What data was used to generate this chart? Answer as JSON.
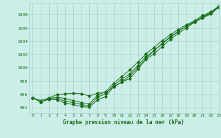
{
  "title": "Graphe pression niveau de la mer (hPa)",
  "bg_color": "#cceee8",
  "grid_color": "#aacccc",
  "line_color": "#1a6e1a",
  "xlim": [
    -0.5,
    23
  ],
  "ylim": [
    993.2,
    1009.8
  ],
  "yticks": [
    994,
    996,
    998,
    1000,
    1002,
    1004,
    1006,
    1008
  ],
  "xticks": [
    0,
    1,
    2,
    3,
    4,
    5,
    6,
    7,
    8,
    9,
    10,
    11,
    12,
    13,
    14,
    15,
    16,
    17,
    18,
    19,
    20,
    21,
    22,
    23
  ],
  "hours": [
    0,
    1,
    2,
    3,
    4,
    5,
    6,
    7,
    8,
    9,
    10,
    11,
    12,
    13,
    14,
    15,
    16,
    17,
    18,
    19,
    20,
    21,
    22,
    23
  ],
  "line1": [
    995.5,
    994.9,
    995.3,
    995.2,
    994.7,
    994.5,
    994.2,
    994.1,
    995.2,
    995.7,
    997.2,
    997.9,
    998.4,
    999.8,
    1001.3,
    1002.1,
    1003.2,
    1004.3,
    1005.2,
    1006.0,
    1006.9,
    1007.5,
    1008.1,
    1009.1
  ],
  "line2": [
    995.5,
    994.9,
    995.3,
    995.4,
    995.0,
    994.8,
    994.5,
    994.3,
    995.6,
    996.1,
    997.4,
    998.3,
    999.1,
    1000.4,
    1001.7,
    1002.6,
    1003.7,
    1004.7,
    1005.5,
    1006.3,
    1006.9,
    1007.7,
    1008.3,
    1009.2
  ],
  "line3": [
    995.5,
    994.9,
    995.4,
    995.6,
    995.4,
    995.1,
    994.8,
    994.6,
    995.9,
    996.4,
    997.7,
    998.7,
    999.7,
    1000.9,
    1002.1,
    1003.1,
    1004.1,
    1005.0,
    1005.8,
    1006.5,
    1007.1,
    1007.9,
    1008.4,
    1009.3
  ],
  "line4": [
    995.5,
    995.1,
    995.5,
    996.0,
    996.1,
    996.2,
    996.1,
    995.8,
    996.2,
    996.3,
    997.1,
    997.9,
    998.8,
    1000.1,
    1001.4,
    1002.6,
    1003.6,
    1004.6,
    1005.5,
    1006.3,
    1007.0,
    1007.6,
    1008.2,
    1009.3
  ]
}
